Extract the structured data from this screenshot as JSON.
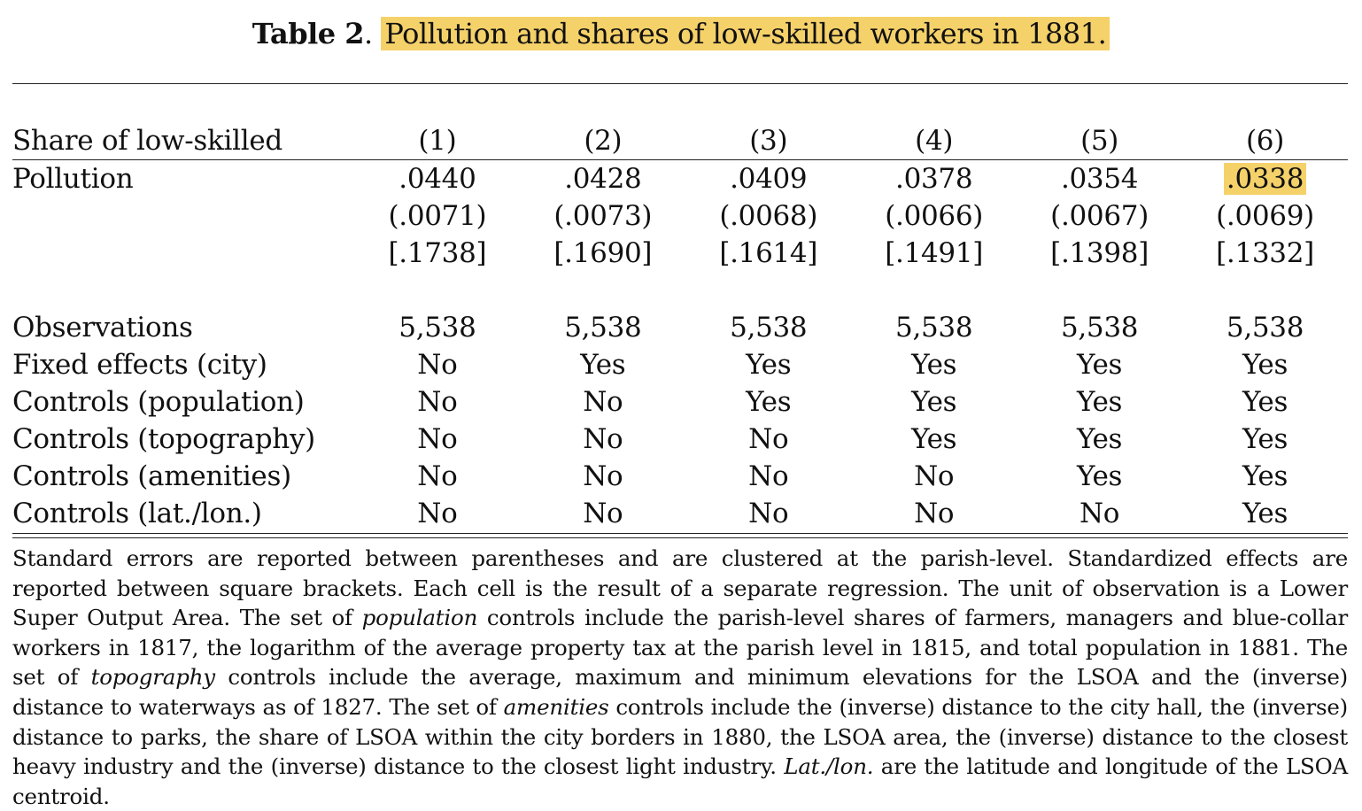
{
  "title": {
    "label": "Table 2",
    "separator": ".",
    "text": "Pollution and shares of low-skilled workers in 1881."
  },
  "table": {
    "corner_label": "Share of low-skilled",
    "columns": [
      "(1)",
      "(2)",
      "(3)",
      "(4)",
      "(5)",
      "(6)"
    ],
    "pollution": {
      "label": "Pollution",
      "coefficients": [
        ".0440",
        ".0428",
        ".0409",
        ".0378",
        ".0354",
        ".0338"
      ],
      "standard_errors": [
        "(.0071)",
        "(.0073)",
        "(.0068)",
        "(.0066)",
        "(.0067)",
        "(.0069)"
      ],
      "standardized_effects": [
        "[.1738]",
        "[.1690]",
        "[.1614]",
        "[.1491]",
        "[.1398]",
        "[.1332]"
      ],
      "highlighted_column_index": 5
    },
    "rows": [
      {
        "label": "Observations",
        "values": [
          "5,538",
          "5,538",
          "5,538",
          "5,538",
          "5,538",
          "5,538"
        ]
      },
      {
        "label": "Fixed effects (city)",
        "values": [
          "No",
          "Yes",
          "Yes",
          "Yes",
          "Yes",
          "Yes"
        ]
      },
      {
        "label": "Controls (population)",
        "values": [
          "No",
          "No",
          "Yes",
          "Yes",
          "Yes",
          "Yes"
        ]
      },
      {
        "label": "Controls (topography)",
        "values": [
          "No",
          "No",
          "No",
          "Yes",
          "Yes",
          "Yes"
        ]
      },
      {
        "label": "Controls (amenities)",
        "values": [
          "No",
          "No",
          "No",
          "No",
          "Yes",
          "Yes"
        ]
      },
      {
        "label": "Controls (lat./lon.)",
        "values": [
          "No",
          "No",
          "No",
          "No",
          "No",
          "Yes"
        ]
      }
    ]
  },
  "note": {
    "part1": "Standard errors are reported between parentheses and are clustered at the parish-level. Standardized effects are reported between square brackets. Each cell is the result of a separate regression. The unit of observation is a Lower Super Output Area. The set of ",
    "em1": "population",
    "part2": " controls include the parish-level shares of farmers, managers and blue-collar workers in 1817, the logarithm of the average property tax at the parish level in 1815, and total population in 1881. The set of ",
    "em2": "topography",
    "part3": " controls include the average, maximum and minimum elevations for the LSOA and the (inverse) distance to waterways as of 1827. The set of ",
    "em3": "amenities",
    "part4": " controls include the (inverse) distance to the city hall, the (inverse) distance to parks, the share of LSOA within the city borders in 1880, the LSOA area, the (inverse) distance to the closest heavy industry and the (inverse) distance to the closest light industry. ",
    "em4": "Lat./lon.",
    "part5": " are the latitude and longitude of the LSOA centroid."
  },
  "colors": {
    "highlight": "#f5d16a",
    "rule": "#222222"
  }
}
